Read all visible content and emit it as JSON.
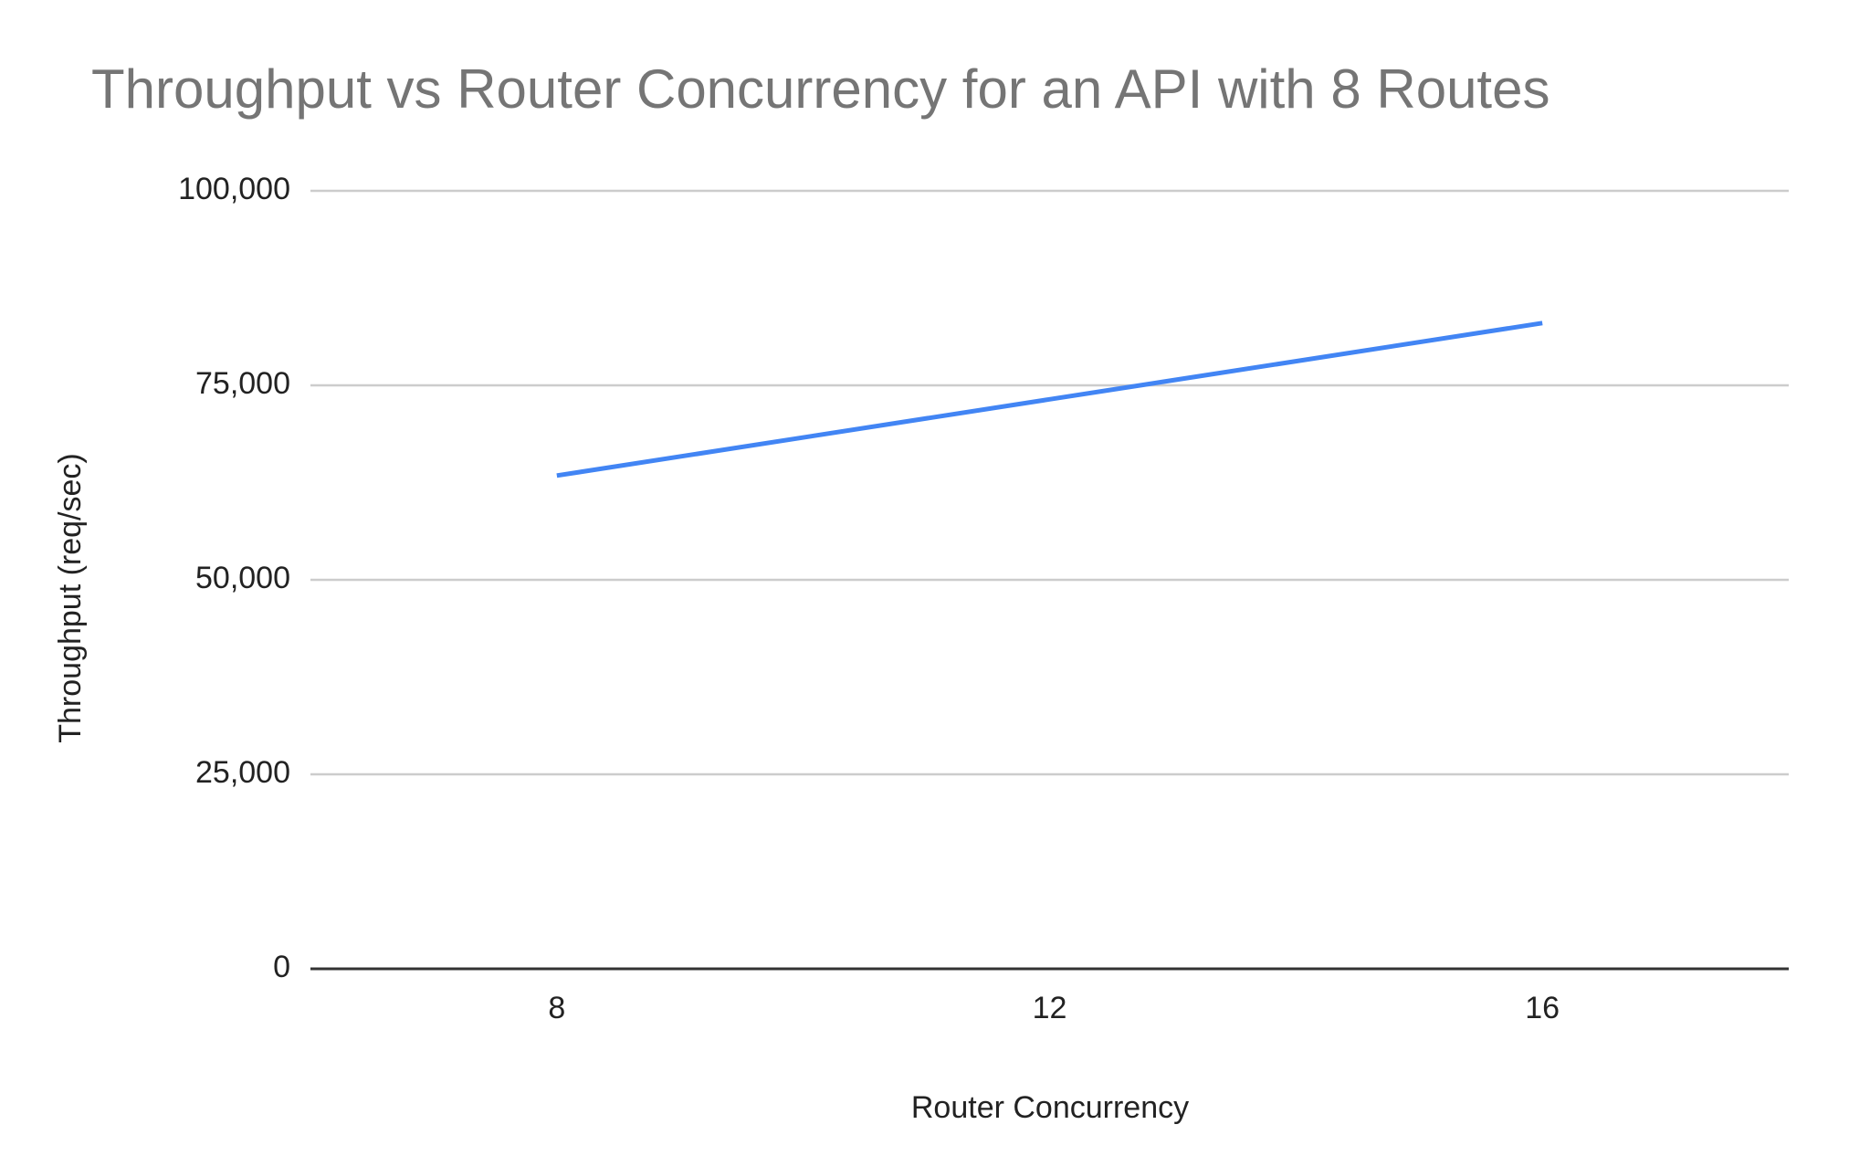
{
  "chart_data": {
    "type": "line",
    "title": "Throughput vs Router Concurrency for an API with 8 Routes",
    "x_label": "Router Concurrency",
    "y_label": "Throughput (req/sec)",
    "categories": [
      "8",
      "12",
      "16"
    ],
    "series": [
      {
        "name": "Throughput",
        "color": "#4285f4",
        "values": [
          63400,
          73200,
          83000
        ]
      }
    ],
    "ylim": [
      0,
      100000
    ],
    "yticks": [
      0,
      {
        "value": 25000,
        "label": "25,000"
      },
      {
        "value": 50000,
        "label": "50,000"
      },
      {
        "value": 75000,
        "label": "75,000"
      },
      {
        "value": 100000,
        "label": "100,000"
      }
    ],
    "grid": true
  }
}
